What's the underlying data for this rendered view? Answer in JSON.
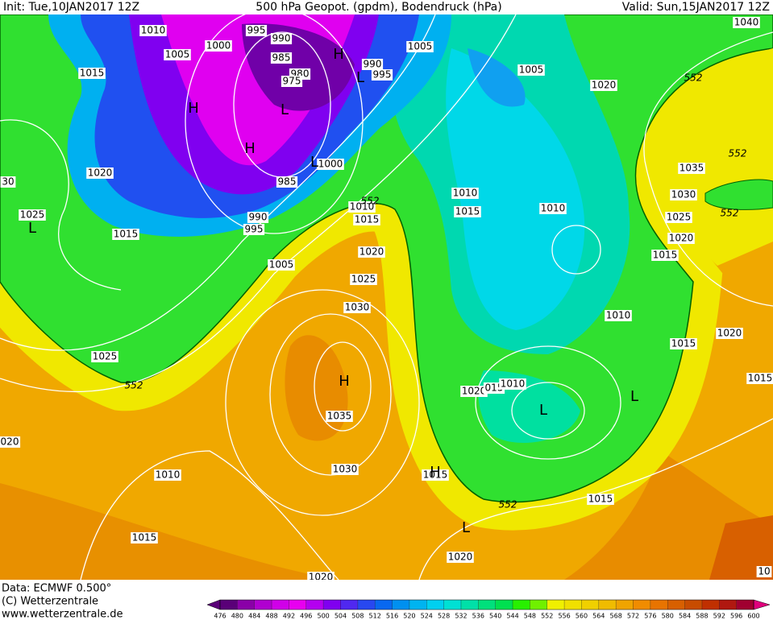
{
  "header": {
    "init": "Init: Tue,10JAN2017 12Z",
    "title": "500 hPa Geopot. (gpdm), Bodendruck (hPa)",
    "valid": "Valid: Sun,15JAN2017 12Z"
  },
  "map": {
    "isobar_labels": [
      "1010",
      "995",
      "990",
      "1000",
      "1005",
      "985",
      "980",
      "975",
      "990",
      "995",
      "1005",
      "1040",
      "1005",
      "1020",
      "552",
      "1015",
      "552",
      "1035",
      "1030",
      "1025",
      "552",
      "1020",
      "1015",
      "1000",
      "985",
      "1020",
      "30",
      "1010",
      "1015",
      "1010",
      "1010",
      "1015",
      "552",
      "1025",
      "1015",
      "990",
      "995",
      "1005",
      "1020",
      "1025",
      "1030",
      "1010",
      "1020",
      "1015",
      "1015",
      "1025",
      "552",
      "1020",
      "015",
      "1010",
      "1035",
      "1030",
      "1010",
      "1015",
      "020",
      "552",
      "1015",
      "1015",
      "1020",
      "1020",
      "10"
    ],
    "centers": [
      "H",
      "H",
      "L",
      "L",
      "H",
      "L",
      "L",
      "H",
      "L",
      "L",
      "H",
      "L"
    ]
  },
  "footer": {
    "data": "Data: ECMWF  0.500°",
    "copyright": "(C) Wetterzentrale",
    "url": "www.wetterzentrale.de"
  },
  "colorbar": {
    "labels": [
      476,
      480,
      484,
      488,
      492,
      496,
      500,
      504,
      508,
      512,
      516,
      520,
      524,
      528,
      532,
      536,
      540,
      544,
      548,
      552,
      556,
      560,
      564,
      568,
      572,
      576,
      580,
      584,
      588,
      592,
      596,
      600
    ],
    "colors": [
      "#5a0078",
      "#8a00a8",
      "#b000d0",
      "#d000e8",
      "#e800f0",
      "#b400f0",
      "#8000f0",
      "#5028f0",
      "#2848f0",
      "#0868f0",
      "#0090f0",
      "#00b4f0",
      "#00d0f0",
      "#00e0d4",
      "#00e0a8",
      "#00e07c",
      "#00e050",
      "#28f000",
      "#70f000",
      "#f0f000",
      "#f0e000",
      "#f0d000",
      "#f0bc00",
      "#f0a400",
      "#f08c00",
      "#e87400",
      "#d86000",
      "#c84c00",
      "#c03000",
      "#b01810",
      "#a00030"
    ]
  }
}
